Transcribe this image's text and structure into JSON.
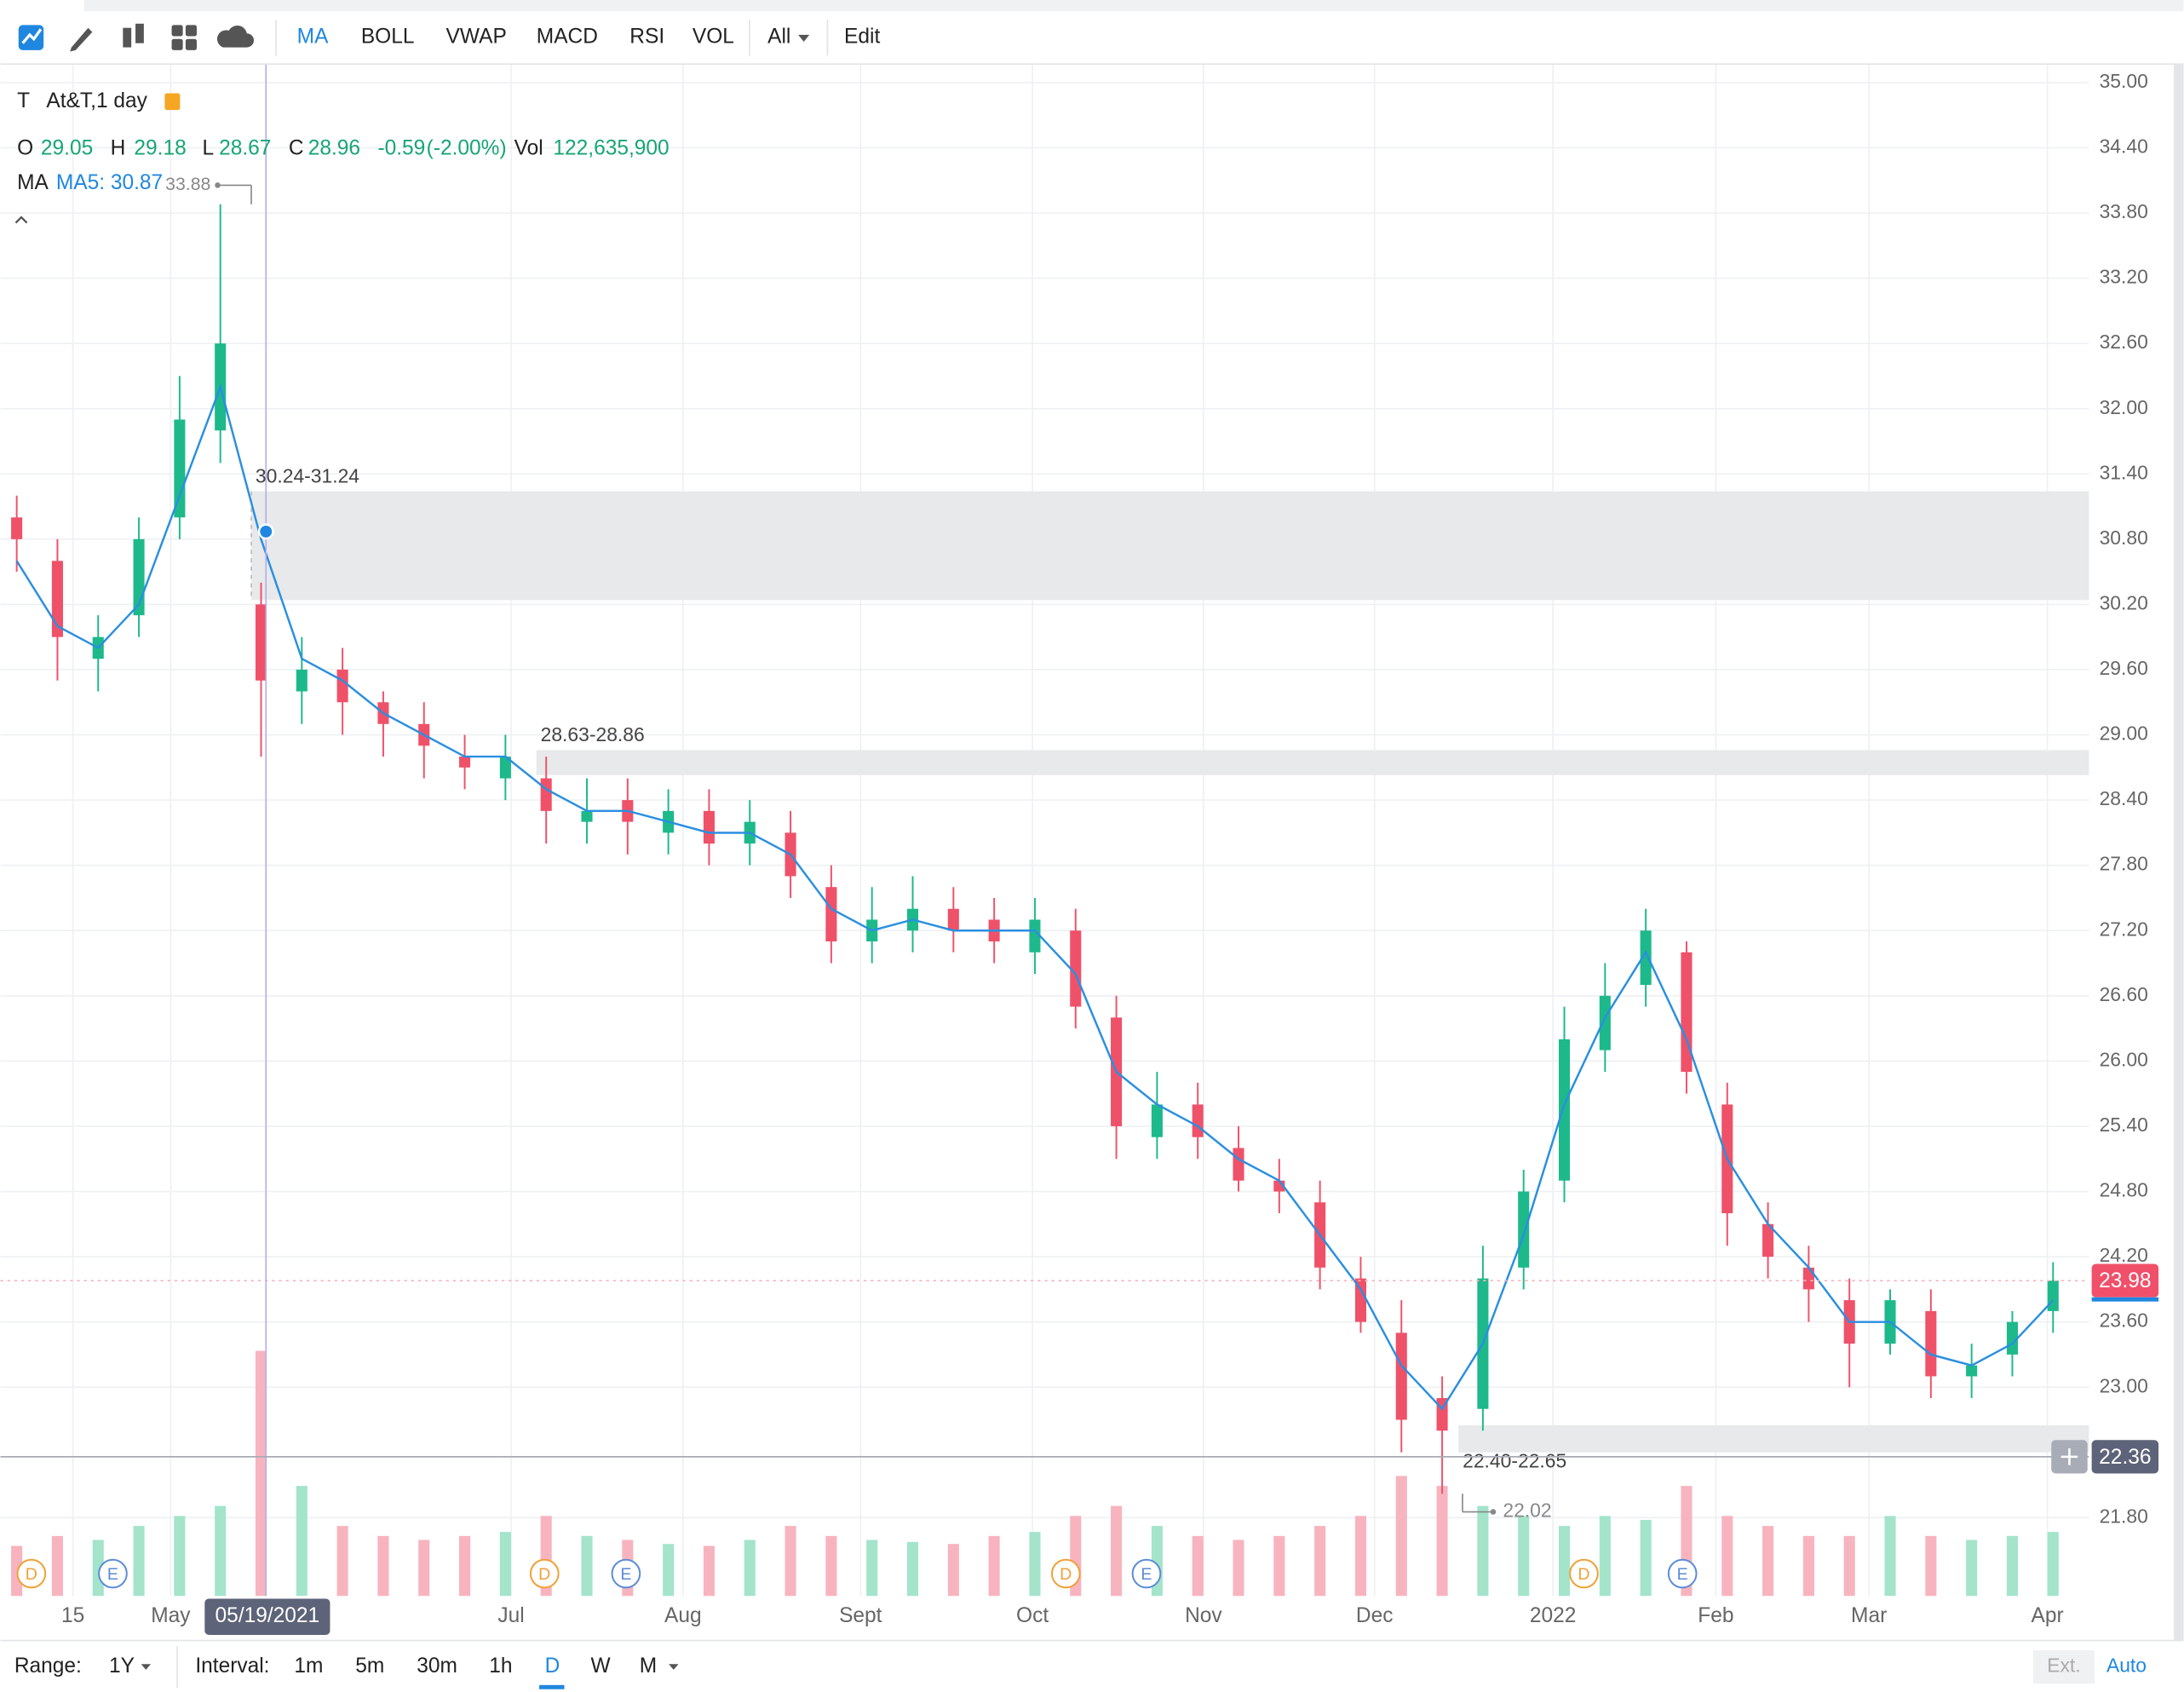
{
  "toolbar": {
    "indicators": [
      "MA",
      "BOLL",
      "VWAP",
      "MACD",
      "RSI",
      "VOL"
    ],
    "all": "All",
    "edit": "Edit"
  },
  "legend": {
    "symbol": "T",
    "name": "At&T,1 day",
    "open_key": "O",
    "open": "29.05",
    "high_key": "H",
    "high": "29.18",
    "low_key": "L",
    "low": "28.67",
    "close_key": "C",
    "close": "28.96",
    "change": "-0.59",
    "change_pct": "(-2.00%)",
    "vol_key": "Vol",
    "vol": "122,635,900",
    "ma_key": "MA",
    "ma5": "MA5: 30.87"
  },
  "chart_data": {
    "type": "candlestick",
    "xlim": [
      0,
      256.4
    ],
    "ylim": [
      21.08,
      35.17
    ],
    "grid": true,
    "up_color": "#1db98b",
    "down_color": "#ef5169",
    "volume_up_color": "#a3e4cb",
    "volume_down_color": "#f7b4bf",
    "ma_color": "#2a8fe0",
    "xticks": [
      {
        "value": 8.9,
        "label": "15"
      },
      {
        "value": 20.9,
        "label": "May"
      },
      {
        "value": 62.7,
        "label": "Jul"
      },
      {
        "value": 83.8,
        "label": "Aug"
      },
      {
        "value": 105.6,
        "label": "Sept"
      },
      {
        "value": 126.7,
        "label": "Oct"
      },
      {
        "value": 147.7,
        "label": "Nov"
      },
      {
        "value": 168.7,
        "label": "Dec"
      },
      {
        "value": 190.6,
        "label": "2022"
      },
      {
        "value": 210.6,
        "label": "Feb"
      },
      {
        "value": 229.4,
        "label": "Mar"
      },
      {
        "value": 251.3,
        "label": "Apr"
      }
    ],
    "yticks": [
      {
        "value": 35,
        "label": "35.00"
      },
      {
        "value": 34.4,
        "label": "34.40"
      },
      {
        "value": 33.8,
        "label": "33.80"
      },
      {
        "value": 33.2,
        "label": "33.20"
      },
      {
        "value": 32.6,
        "label": "32.60"
      },
      {
        "value": 32,
        "label": "32.00"
      },
      {
        "value": 31.4,
        "label": "31.40"
      },
      {
        "value": 30.8,
        "label": "30.80"
      },
      {
        "value": 30.2,
        "label": "30.20"
      },
      {
        "value": 29.6,
        "label": "29.60"
      },
      {
        "value": 29,
        "label": "29.00"
      },
      {
        "value": 28.4,
        "label": "28.40"
      },
      {
        "value": 27.8,
        "label": "27.80"
      },
      {
        "value": 27.2,
        "label": "27.20"
      },
      {
        "value": 26.6,
        "label": "26.60"
      },
      {
        "value": 26,
        "label": "26.00"
      },
      {
        "value": 25.4,
        "label": "25.40"
      },
      {
        "value": 24.8,
        "label": "24.80"
      },
      {
        "value": 24.2,
        "label": "24.20"
      },
      {
        "value": 23.6,
        "label": "23.60"
      },
      {
        "value": 23,
        "label": "23.00"
      },
      {
        "value": 21.8,
        "label": "21.80"
      }
    ],
    "x": [
      2,
      7,
      12,
      17,
      22,
      27,
      32,
      37,
      42,
      47,
      52,
      57,
      62,
      67,
      72,
      77,
      82,
      87,
      92,
      97,
      102,
      107,
      112,
      117,
      122,
      127,
      132,
      137,
      142,
      147,
      152,
      157,
      162,
      167,
      172,
      177,
      182,
      187,
      192,
      197,
      202,
      207,
      212,
      217,
      222,
      227,
      232,
      237,
      242,
      247,
      252
    ],
    "open": [
      31.0,
      30.6,
      29.7,
      30.1,
      31.0,
      31.8,
      30.2,
      29.4,
      29.6,
      29.3,
      29.1,
      28.8,
      28.6,
      28.6,
      28.2,
      28.4,
      28.1,
      28.3,
      28.0,
      28.1,
      27.6,
      27.1,
      27.2,
      27.4,
      27.3,
      27.0,
      27.2,
      26.4,
      25.3,
      25.6,
      25.2,
      24.9,
      24.7,
      24.0,
      23.5,
      22.9,
      22.8,
      24.1,
      24.9,
      26.1,
      26.7,
      27.0,
      25.6,
      24.5,
      24.1,
      23.8,
      23.4,
      23.7,
      23.1,
      23.3,
      23.7
    ],
    "high": [
      31.2,
      30.8,
      30.1,
      31.0,
      32.3,
      33.88,
      30.4,
      29.9,
      29.8,
      29.4,
      29.3,
      29.0,
      29.0,
      28.8,
      28.6,
      28.6,
      28.5,
      28.5,
      28.4,
      28.3,
      27.8,
      27.6,
      27.7,
      27.6,
      27.5,
      27.5,
      27.4,
      26.6,
      25.9,
      25.8,
      25.4,
      25.1,
      24.9,
      24.2,
      23.8,
      23.1,
      24.3,
      25.0,
      26.5,
      26.9,
      27.4,
      27.1,
      25.8,
      24.7,
      24.3,
      24.0,
      23.9,
      23.9,
      23.4,
      23.7,
      24.15
    ],
    "low": [
      30.5,
      29.5,
      29.4,
      29.9,
      30.8,
      31.5,
      28.8,
      29.1,
      29.0,
      28.8,
      28.6,
      28.5,
      28.4,
      28.0,
      28.0,
      27.9,
      27.9,
      27.8,
      27.8,
      27.5,
      26.9,
      26.9,
      27.0,
      27.0,
      26.9,
      26.8,
      26.3,
      25.1,
      25.1,
      25.1,
      24.8,
      24.6,
      23.9,
      23.5,
      22.4,
      22.02,
      22.6,
      23.9,
      24.7,
      25.9,
      26.5,
      25.7,
      24.3,
      24.0,
      23.6,
      23.0,
      23.3,
      22.9,
      22.9,
      23.1,
      23.5
    ],
    "close": [
      30.8,
      29.9,
      29.9,
      30.8,
      31.9,
      32.6,
      29.5,
      29.6,
      29.3,
      29.1,
      28.9,
      28.7,
      28.8,
      28.3,
      28.3,
      28.2,
      28.3,
      28.0,
      28.2,
      27.7,
      27.1,
      27.3,
      27.4,
      27.2,
      27.1,
      27.3,
      26.5,
      25.4,
      25.6,
      25.3,
      24.9,
      24.8,
      24.1,
      23.6,
      22.7,
      22.6,
      24.0,
      24.8,
      26.2,
      26.6,
      27.2,
      25.9,
      24.6,
      24.2,
      23.9,
      23.4,
      23.8,
      23.1,
      23.2,
      23.6,
      23.98
    ],
    "ma": [
      30.6,
      30.0,
      29.8,
      30.2,
      31.2,
      32.2,
      30.8,
      29.7,
      29.5,
      29.2,
      29.0,
      28.8,
      28.8,
      28.5,
      28.3,
      28.3,
      28.2,
      28.1,
      28.1,
      27.9,
      27.4,
      27.2,
      27.3,
      27.2,
      27.2,
      27.2,
      26.8,
      25.9,
      25.6,
      25.4,
      25.1,
      24.9,
      24.4,
      23.9,
      23.2,
      22.8,
      23.4,
      24.4,
      25.6,
      26.4,
      27.0,
      26.2,
      25.1,
      24.5,
      24.1,
      23.6,
      23.6,
      23.3,
      23.2,
      23.4,
      23.8
    ],
    "volume": [
      25,
      30,
      28,
      35,
      40,
      45,
      122.6,
      55,
      35,
      30,
      28,
      30,
      32,
      40,
      30,
      28,
      26,
      25,
      28,
      35,
      30,
      28,
      27,
      26,
      30,
      32,
      40,
      45,
      35,
      30,
      28,
      30,
      35,
      40,
      60,
      55,
      45,
      40,
      35,
      40,
      38,
      55,
      40,
      35,
      30,
      30,
      40,
      30,
      28,
      30,
      32
    ],
    "zones": [
      {
        "from": 30.8,
        "low": 30.24,
        "high": 31.24,
        "label": "30.24-31.24"
      },
      {
        "from": 65.8,
        "low": 28.63,
        "high": 28.86,
        "label": "28.63-28.86"
      },
      {
        "from": 179,
        "low": 22.4,
        "high": 22.65,
        "label": "22.40-22.65"
      }
    ],
    "events": [
      {
        "x": 3.8,
        "label": "D"
      },
      {
        "x": 13.8,
        "label": "E"
      },
      {
        "x": 66.8,
        "label": "D"
      },
      {
        "x": 76.8,
        "label": "E"
      },
      {
        "x": 130.8,
        "label": "D"
      },
      {
        "x": 140.7,
        "label": "E"
      },
      {
        "x": 194.4,
        "label": "D"
      },
      {
        "x": 206.5,
        "label": "E"
      }
    ],
    "high_marker": {
      "x": 30.8,
      "value": 33.88
    },
    "low_marker": {
      "x": 179.5,
      "value": 22.02
    },
    "crosshair": {
      "x": 32.6,
      "label": "05/19/2021",
      "ma": 30.87,
      "price": 22.36
    },
    "last_price": 23.98
  },
  "bottom": {
    "range_label": "Range:",
    "range": "1Y",
    "interval_label": "Interval:",
    "intervals": [
      "1m",
      "5m",
      "30m",
      "1h",
      "D",
      "W",
      "M"
    ],
    "ext": "Ext.",
    "auto": "Auto"
  }
}
